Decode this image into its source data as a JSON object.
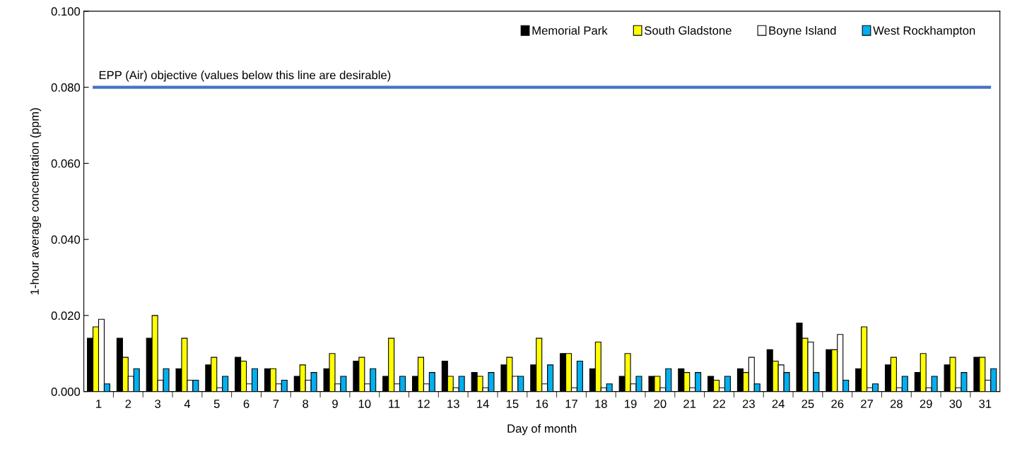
{
  "chart_data": {
    "type": "bar",
    "xlabel": "Day of month",
    "ylabel": "1-hour average concentration (ppm)",
    "categories": [
      "1",
      "2",
      "3",
      "4",
      "5",
      "6",
      "7",
      "8",
      "9",
      "10",
      "11",
      "12",
      "13",
      "14",
      "15",
      "16",
      "17",
      "18",
      "19",
      "20",
      "21",
      "22",
      "23",
      "24",
      "25",
      "26",
      "27",
      "28",
      "29",
      "30",
      "31"
    ],
    "series": [
      {
        "name": "Memorial Park",
        "color": "#000000",
        "values": [
          0.014,
          0.014,
          0.014,
          0.006,
          0.007,
          0.009,
          0.006,
          0.004,
          0.006,
          0.008,
          0.004,
          0.004,
          0.008,
          0.005,
          0.007,
          0.007,
          0.01,
          0.006,
          0.004,
          0.004,
          0.006,
          0.004,
          0.006,
          0.011,
          0.018,
          0.011,
          0.006,
          0.007,
          0.005,
          0.007,
          0.009
        ]
      },
      {
        "name": "South Gladstone",
        "color": "#ffff00",
        "values": [
          0.017,
          0.009,
          0.02,
          0.014,
          0.009,
          0.008,
          0.006,
          0.007,
          0.01,
          0.009,
          0.014,
          0.009,
          0.004,
          0.004,
          0.009,
          0.014,
          0.01,
          0.013,
          0.01,
          0.004,
          0.005,
          0.003,
          0.005,
          0.008,
          0.014,
          0.011,
          0.017,
          0.009,
          0.01,
          0.009,
          0.009
        ]
      },
      {
        "name": "Boyne Island",
        "color": "#ffffff",
        "values": [
          0.019,
          0.004,
          0.003,
          0.003,
          0.001,
          0.002,
          0.002,
          0.003,
          0.002,
          0.002,
          0.002,
          0.002,
          0.001,
          0.001,
          0.004,
          0.002,
          0.001,
          0.001,
          0.002,
          0.001,
          0.001,
          0.001,
          0.009,
          0.007,
          0.013,
          0.015,
          0.001,
          0.001,
          0.001,
          0.001,
          0.003
        ]
      },
      {
        "name": "West Rockhampton",
        "color": "#00b0f0",
        "values": [
          0.002,
          0.006,
          0.006,
          0.003,
          0.004,
          0.006,
          0.003,
          0.005,
          0.004,
          0.006,
          0.004,
          0.005,
          0.004,
          0.005,
          0.004,
          0.007,
          0.008,
          0.002,
          0.004,
          0.006,
          0.005,
          0.004,
          0.002,
          0.005,
          0.005,
          0.003,
          0.002,
          0.004,
          0.004,
          0.005,
          0.006
        ]
      }
    ],
    "ylim": [
      0,
      0.1
    ],
    "yticks": [
      {
        "value": 0,
        "label": "0.000"
      },
      {
        "value": 0.02,
        "label": "0.020"
      },
      {
        "value": 0.04,
        "label": "0.040"
      },
      {
        "value": 0.06,
        "label": "0.060"
      },
      {
        "value": 0.08,
        "label": "0.080"
      },
      {
        "value": 0.1,
        "label": "0.100"
      }
    ],
    "ref_lines": [
      {
        "axis": "y",
        "value": 0.08,
        "label": "EPP (Air) objective (values below this line are desirable)",
        "color": "#4472c4"
      }
    ],
    "grid": false,
    "legend": "top right"
  }
}
